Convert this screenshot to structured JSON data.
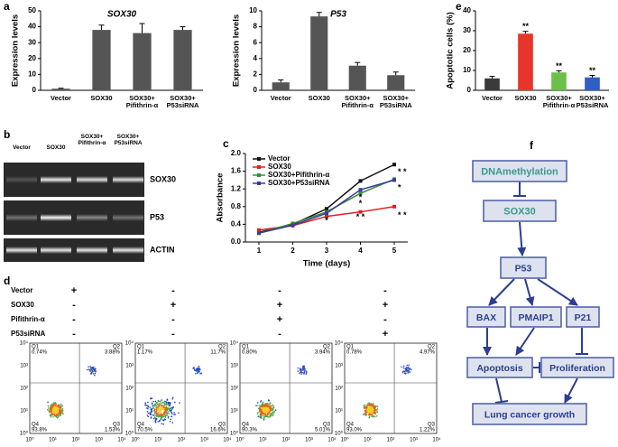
{
  "panels": [
    "a",
    "b",
    "c",
    "d",
    "e",
    "f"
  ],
  "chart_data": [
    {
      "type": "bar",
      "title": "SOX30",
      "ylabel": "Expression levels",
      "categories": [
        "Vector",
        "SOX30",
        "SOX30+\nPifithrin-α",
        "SOX30+\nP53siRNA"
      ],
      "values": [
        1,
        38,
        36,
        38
      ],
      "errors": [
        0.3,
        3,
        6,
        2
      ],
      "color": "#555555",
      "ylim": [
        0,
        50
      ],
      "yticks": [
        0,
        10,
        20,
        30,
        40,
        50
      ]
    },
    {
      "type": "bar",
      "title": "P53",
      "ylabel": "Expression levels",
      "categories": [
        "Vector",
        "SOX30",
        "SOX30+\nPifithrin-α",
        "SOX30+\nP53siRNA"
      ],
      "values": [
        1,
        9.3,
        3.1,
        1.9
      ],
      "errors": [
        0.3,
        0.5,
        0.4,
        0.4
      ],
      "color": "#555555",
      "ylim": [
        0,
        10
      ],
      "yticks": [
        0,
        2,
        4,
        6,
        8,
        10
      ]
    },
    {
      "type": "bar",
      "ylabel": "Apoptotic cells (%)",
      "categories": [
        "Vector",
        "SOX30",
        "SOX30+\nPifithrin-α",
        "SOX30+\nP53siRNA"
      ],
      "values": [
        6,
        28.5,
        9,
        6.5
      ],
      "errors": [
        1,
        1.2,
        0.8,
        1
      ],
      "colors": [
        "#3a3a3a",
        "#e8352a",
        "#6cbf4a",
        "#2f5fc4"
      ],
      "significance": [
        null,
        "**",
        "**",
        "**"
      ],
      "ylim": [
        0,
        40
      ],
      "yticks": [
        0,
        10,
        20,
        30,
        40
      ]
    },
    {
      "type": "line",
      "xlabel": "Time (days)",
      "ylabel": "Absorbance",
      "x": [
        1,
        2,
        3,
        4,
        5
      ],
      "xlim": [
        0.6,
        5.4
      ],
      "xticks": [
        1,
        2,
        3,
        4,
        5
      ],
      "ylim": [
        0,
        2
      ],
      "yticks": [
        {
          "value": 0,
          "label": "0.0"
        },
        {
          "value": 0.4,
          "label": "0.4"
        },
        {
          "value": 0.8,
          "label": "0.8"
        },
        {
          "value": 1.2,
          "label": "1.2"
        },
        {
          "value": 1.6,
          "label": "1.6"
        },
        {
          "value": 2,
          "label": "2.0"
        }
      ],
      "series": [
        {
          "name": "Vector",
          "color": "#111111",
          "values": [
            0.22,
            0.4,
            0.75,
            1.38,
            1.75
          ]
        },
        {
          "name": "SOX30",
          "color": "#e02020",
          "values": [
            0.27,
            0.37,
            0.58,
            0.68,
            0.8
          ]
        },
        {
          "name": "SOX30+Pifithrin-α",
          "color": "#3a8a3a",
          "values": [
            0.2,
            0.42,
            0.68,
            1.1,
            1.42
          ]
        },
        {
          "name": "SOX30+P53siRNA",
          "color": "#3a3a9a",
          "values": [
            0.2,
            0.38,
            0.65,
            1.18,
            1.4
          ]
        }
      ],
      "annotations": [
        {
          "text": "*",
          "x": 3,
          "y": 0.48
        },
        {
          "text": "*",
          "x": 4,
          "y": 1.0
        },
        {
          "text": "*",
          "x": 4,
          "y": 0.86
        },
        {
          "text": "* *",
          "x": 4,
          "y": 0.56
        },
        {
          "text": "* *",
          "x": 5,
          "y": 1.58
        },
        {
          "text": "*",
          "x": 5,
          "y": 1.22
        },
        {
          "text": "* *",
          "x": 5,
          "y": 0.6
        }
      ],
      "legend": "upper-left"
    }
  ],
  "blot": {
    "columns": [
      "Vector",
      "SOX30",
      "SOX30+\nPifithrin-α",
      "SOX30+\nP53siRNA"
    ],
    "rows": [
      "SOX30",
      "P53",
      "ACTIN"
    ]
  },
  "flow": {
    "conditions": [
      {
        "name": "Vector",
        "signs": [
          "+",
          "-",
          "-",
          "-"
        ]
      },
      {
        "name": "SOX30",
        "signs": [
          "-",
          "+",
          "+",
          "+"
        ]
      },
      {
        "name": "Pifithrin-α",
        "signs": [
          "-",
          "-",
          "+",
          "-"
        ]
      },
      {
        "name": "P53siRNA",
        "signs": [
          "-",
          "-",
          "-",
          "+"
        ]
      }
    ],
    "ticks": [
      "10⁰",
      "10¹",
      "10²",
      "10³",
      "10⁴"
    ],
    "plots": [
      {
        "quadrants": [
          {
            "name": "Q1",
            "value": "0.74%"
          },
          {
            "name": "Q2",
            "value": "3.88%"
          },
          {
            "name": "Q3",
            "value": "1.53%"
          },
          {
            "name": "Q4",
            "value": "93.8%"
          }
        ]
      },
      {
        "quadrants": [
          {
            "name": "Q1",
            "value": "1.17%"
          },
          {
            "name": "Q2",
            "value": "11.7%"
          },
          {
            "name": "Q3",
            "value": "16.6%"
          },
          {
            "name": "Q4",
            "value": "70.5%"
          }
        ]
      },
      {
        "quadrants": [
          {
            "name": "Q1",
            "value": "0.80%"
          },
          {
            "name": "Q2",
            "value": "3.94%"
          },
          {
            "name": "Q3",
            "value": "5.01%"
          },
          {
            "name": "Q4",
            "value": "90.3%"
          }
        ]
      },
      {
        "quadrants": [
          {
            "name": "Q1",
            "value": "0.78%"
          },
          {
            "name": "Q2",
            "value": "4.97%"
          },
          {
            "name": "Q3",
            "value": "1.22%"
          },
          {
            "name": "Q4",
            "value": "93.0%"
          }
        ]
      }
    ]
  },
  "diagram": {
    "nodes": [
      {
        "label": "DNAmethylation"
      },
      {
        "label": "SOX30"
      },
      {
        "label": "P53"
      },
      {
        "label": "BAX"
      },
      {
        "label": "PMAIP1"
      },
      {
        "label": "P21"
      },
      {
        "label": "Apoptosis"
      },
      {
        "label": "Proliferation"
      },
      {
        "label": "Lung cancer growth"
      }
    ]
  }
}
